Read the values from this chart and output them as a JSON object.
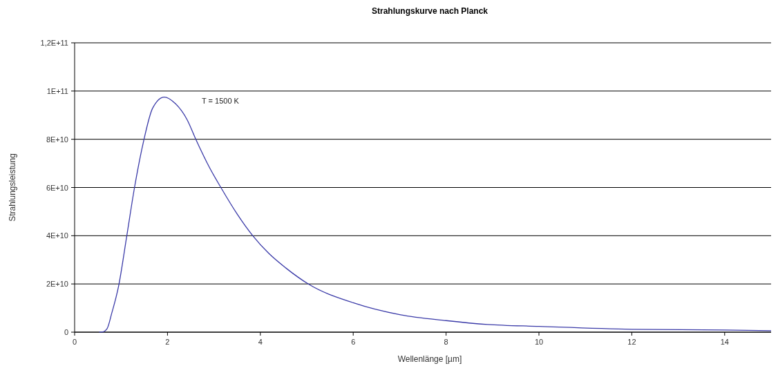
{
  "chart_data": {
    "type": "line",
    "title": "Strahlungskurve nach Planck",
    "xlabel": "Wellenlänge [µm]",
    "ylabel": "Strahlungsleistung",
    "annotations": [
      "T = 1500 K"
    ],
    "series": [
      {
        "color": "#3a3aa8",
        "x": [
          0.53,
          0.6,
          0.7,
          0.8,
          0.95,
          1.12,
          1.29,
          1.49,
          1.68,
          1.93,
          2.17,
          2.42,
          2.61,
          2.91,
          3.15,
          3.5,
          3.84,
          4.18,
          4.55,
          5.04,
          6.0,
          7.02,
          8.0,
          8.89,
          10.0,
          12.0,
          14.0,
          15.0
        ],
        "values": [
          0,
          100000000.0,
          1500000000.0,
          7900000000.0,
          19400000000.0,
          39500000000.0,
          60000000000.0,
          79600000000.0,
          92900000000.0,
          97500000000.0,
          94800000000.0,
          88200000000.0,
          80000000000.0,
          68100000000.0,
          60000000000.0,
          49000000000.0,
          39900000000.0,
          32700000000.0,
          26600000000.0,
          19900000000.0,
          12200000000.0,
          7200000000.0,
          4800000000.0,
          3200000000.0,
          2400000000.0,
          1200000000.0,
          900000000.0,
          600000000.0
        ]
      }
    ],
    "xlim": [
      0,
      15
    ],
    "xticks": [
      0,
      2,
      4,
      6,
      8,
      10,
      12,
      14
    ],
    "ylim": [
      0,
      120000000000.0
    ],
    "yticks": [
      {
        "value": 0,
        "label": "0"
      },
      {
        "value": 20000000000.0,
        "label": "2E+10"
      },
      {
        "value": 40000000000.0,
        "label": "4E+10"
      },
      {
        "value": 60000000000.0,
        "label": "6E+10"
      },
      {
        "value": 80000000000.0,
        "label": "8E+10"
      },
      {
        "value": 100000000000.0,
        "label": "1E+11"
      },
      {
        "value": 120000000000.0,
        "label": "1,2E+11"
      }
    ],
    "grid": "y",
    "marker": "none",
    "line_style": "solid"
  }
}
